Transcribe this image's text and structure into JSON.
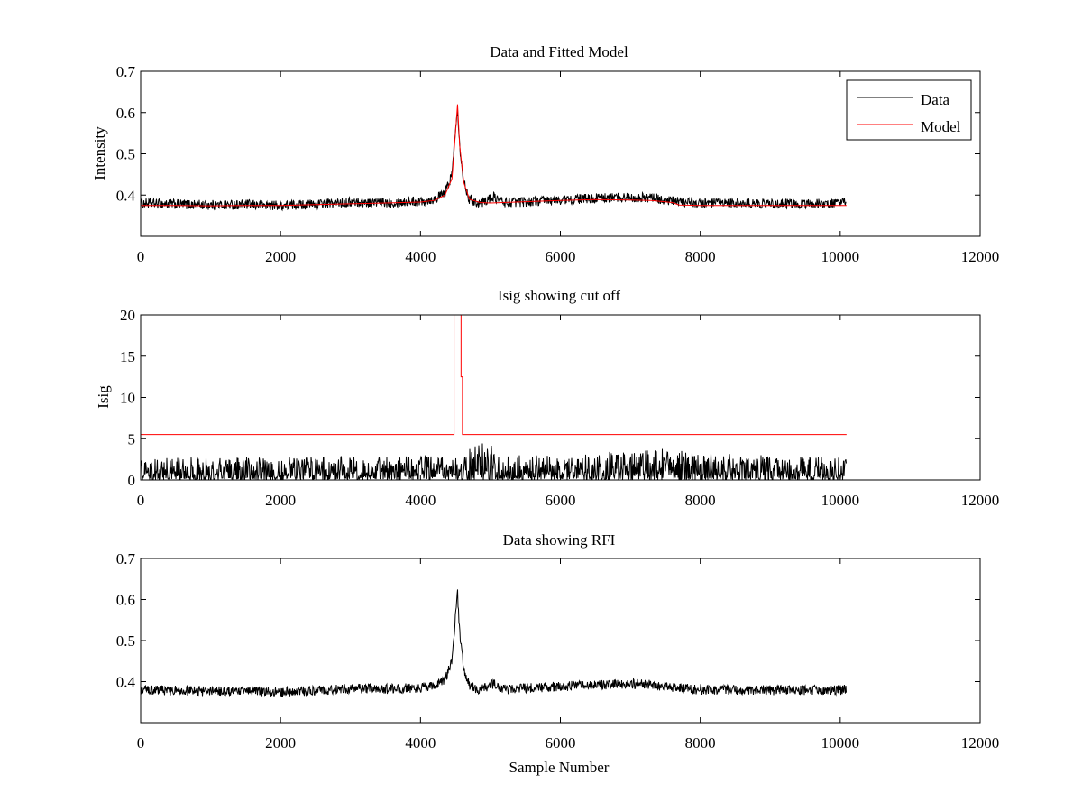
{
  "chart_data": [
    {
      "type": "line",
      "title": "Data and Fitted Model",
      "xlabel": "",
      "ylabel": "Intensity",
      "xlim": [
        0,
        12000
      ],
      "ylim": [
        0.3,
        0.7
      ],
      "xticks": [
        0,
        2000,
        4000,
        6000,
        8000,
        10000,
        12000
      ],
      "yticks": [
        0.4,
        0.5,
        0.6,
        0.7
      ],
      "grid": false,
      "legend": {
        "placement": "top-right",
        "entries": [
          "Data",
          "Model"
        ]
      },
      "series": [
        {
          "name": "Data",
          "color": "#000000",
          "style": "noisy",
          "noise_amplitude": 0.012,
          "x": [
            0,
            500,
            1000,
            1500,
            2000,
            2500,
            3000,
            3500,
            4000,
            4200,
            4350,
            4450,
            4500,
            4530,
            4560,
            4620,
            4700,
            4850,
            5000,
            5050,
            5200,
            5500,
            6000,
            6500,
            7000,
            7300,
            7600,
            8000,
            8500,
            9000,
            9500,
            10090
          ],
          "y": [
            0.38,
            0.378,
            0.376,
            0.377,
            0.375,
            0.378,
            0.383,
            0.382,
            0.385,
            0.39,
            0.405,
            0.45,
            0.56,
            0.615,
            0.52,
            0.43,
            0.39,
            0.38,
            0.392,
            0.395,
            0.382,
            0.384,
            0.388,
            0.392,
            0.395,
            0.393,
            0.385,
            0.38,
            0.38,
            0.379,
            0.379,
            0.38
          ]
        },
        {
          "name": "Model",
          "color": "#ff0000",
          "style": "smooth",
          "x": [
            0,
            500,
            1000,
            1500,
            2000,
            2500,
            3000,
            3500,
            4000,
            4200,
            4350,
            4450,
            4500,
            4530,
            4560,
            4620,
            4700,
            4850,
            5000,
            5500,
            6000,
            6500,
            7000,
            7300,
            7600,
            7700,
            8000,
            8500,
            9000,
            9500,
            10090
          ],
          "y": [
            0.375,
            0.375,
            0.374,
            0.375,
            0.375,
            0.377,
            0.379,
            0.381,
            0.383,
            0.387,
            0.4,
            0.44,
            0.55,
            0.62,
            0.52,
            0.43,
            0.39,
            0.382,
            0.381,
            0.384,
            0.387,
            0.389,
            0.388,
            0.387,
            0.382,
            0.376,
            0.375,
            0.375,
            0.375,
            0.375,
            0.375
          ]
        }
      ]
    },
    {
      "type": "line",
      "title": "Isig showing cut off",
      "xlabel": "",
      "ylabel": "Isig",
      "xlim": [
        0,
        12000
      ],
      "ylim": [
        0,
        20
      ],
      "xticks": [
        0,
        2000,
        4000,
        6000,
        8000,
        10000,
        12000
      ],
      "yticks": [
        0,
        5,
        10,
        15,
        20
      ],
      "grid": false,
      "series": [
        {
          "color": "#000000",
          "style": "spiky",
          "x": [
            0,
            2000,
            4000,
            4500,
            5000,
            5020,
            5100,
            6000,
            7000,
            7500,
            8000,
            9000,
            10090
          ],
          "y": [
            2.8,
            2.8,
            2.9,
            3.0,
            5.2,
            4.0,
            3.0,
            3.0,
            3.4,
            3.8,
            3.3,
            3.0,
            2.8
          ]
        },
        {
          "color": "#ff0000",
          "style": "step",
          "x": [
            0,
            4480,
            4480,
            4580,
            4580,
            4600,
            4600,
            10090
          ],
          "y": [
            5.5,
            5.5,
            21,
            21,
            12.5,
            12.5,
            5.5,
            5.5
          ]
        }
      ]
    },
    {
      "type": "line",
      "title": "Data showing RFI",
      "xlabel": "Sample Number",
      "ylabel": "",
      "xlim": [
        0,
        12000
      ],
      "ylim": [
        0.3,
        0.7
      ],
      "xticks": [
        0,
        2000,
        4000,
        6000,
        8000,
        10000,
        12000
      ],
      "yticks": [
        0.4,
        0.5,
        0.6,
        0.7
      ],
      "grid": false,
      "series": [
        {
          "color": "#000000",
          "style": "noisy",
          "noise_amplitude": 0.012,
          "x": [
            0,
            500,
            1000,
            1500,
            2000,
            2500,
            3000,
            3500,
            4000,
            4200,
            4350,
            4450,
            4500,
            4530,
            4560,
            4620,
            4700,
            4850,
            5000,
            5050,
            5200,
            5500,
            6000,
            6500,
            7000,
            7300,
            7600,
            8000,
            8500,
            9000,
            9500,
            10090
          ],
          "y": [
            0.38,
            0.378,
            0.376,
            0.377,
            0.375,
            0.378,
            0.383,
            0.382,
            0.385,
            0.39,
            0.405,
            0.45,
            0.56,
            0.615,
            0.52,
            0.43,
            0.39,
            0.38,
            0.392,
            0.395,
            0.382,
            0.384,
            0.388,
            0.392,
            0.395,
            0.393,
            0.385,
            0.38,
            0.38,
            0.379,
            0.379,
            0.38
          ]
        }
      ]
    }
  ]
}
